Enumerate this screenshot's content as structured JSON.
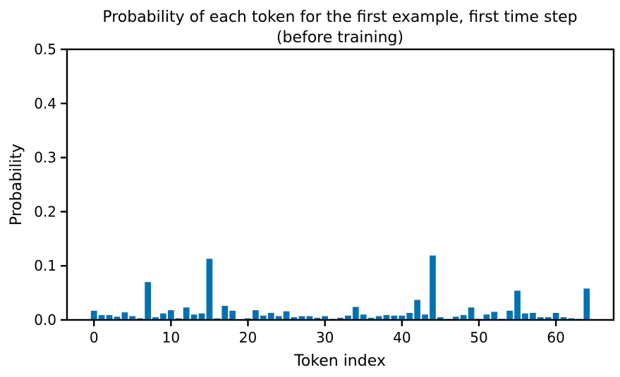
{
  "chart_data": {
    "type": "bar",
    "title_line1": "Probability of each token for the first example, first time step",
    "title_line2": "(before training)",
    "xlabel": "Token index",
    "ylabel": "Probability",
    "xlim": [
      -3.5,
      67.5
    ],
    "ylim": [
      0,
      0.5
    ],
    "xticks": [
      0,
      10,
      20,
      30,
      40,
      50,
      60
    ],
    "xtick_labels": [
      "0",
      "10",
      "20",
      "30",
      "40",
      "50",
      "60"
    ],
    "yticks": [
      0,
      0.1,
      0.2,
      0.3,
      0.4,
      0.5
    ],
    "ytick_labels": [
      "0.0",
      "0.1",
      "0.2",
      "0.3",
      "0.4",
      "0.5"
    ],
    "bar_color": "#0072b2",
    "grid": false,
    "x": [
      0,
      1,
      2,
      3,
      4,
      5,
      6,
      7,
      8,
      9,
      10,
      11,
      12,
      13,
      14,
      15,
      16,
      17,
      18,
      19,
      20,
      21,
      22,
      23,
      24,
      25,
      26,
      27,
      28,
      29,
      30,
      31,
      32,
      33,
      34,
      35,
      36,
      37,
      38,
      39,
      40,
      41,
      42,
      43,
      44,
      45,
      46,
      47,
      48,
      49,
      50,
      51,
      52,
      53,
      54,
      55,
      56,
      57,
      58,
      59,
      60,
      61,
      62,
      63,
      64
    ],
    "values": [
      0.017,
      0.009,
      0.009,
      0.006,
      0.014,
      0.007,
      0.003,
      0.07,
      0.005,
      0.012,
      0.018,
      0.003,
      0.023,
      0.01,
      0.012,
      0.113,
      0.003,
      0.026,
      0.017,
      0.001,
      0.003,
      0.018,
      0.008,
      0.013,
      0.007,
      0.016,
      0.005,
      0.007,
      0.007,
      0.004,
      0.007,
      0.002,
      0.004,
      0.008,
      0.024,
      0.01,
      0.004,
      0.007,
      0.009,
      0.008,
      0.008,
      0.013,
      0.037,
      0.01,
      0.119,
      0.005,
      0.002,
      0.006,
      0.009,
      0.023,
      0.002,
      0.01,
      0.015,
      0.002,
      0.017,
      0.054,
      0.012,
      0.013,
      0.005,
      0.005,
      0.013,
      0.005,
      0.003,
      0.002,
      0.058
    ]
  }
}
